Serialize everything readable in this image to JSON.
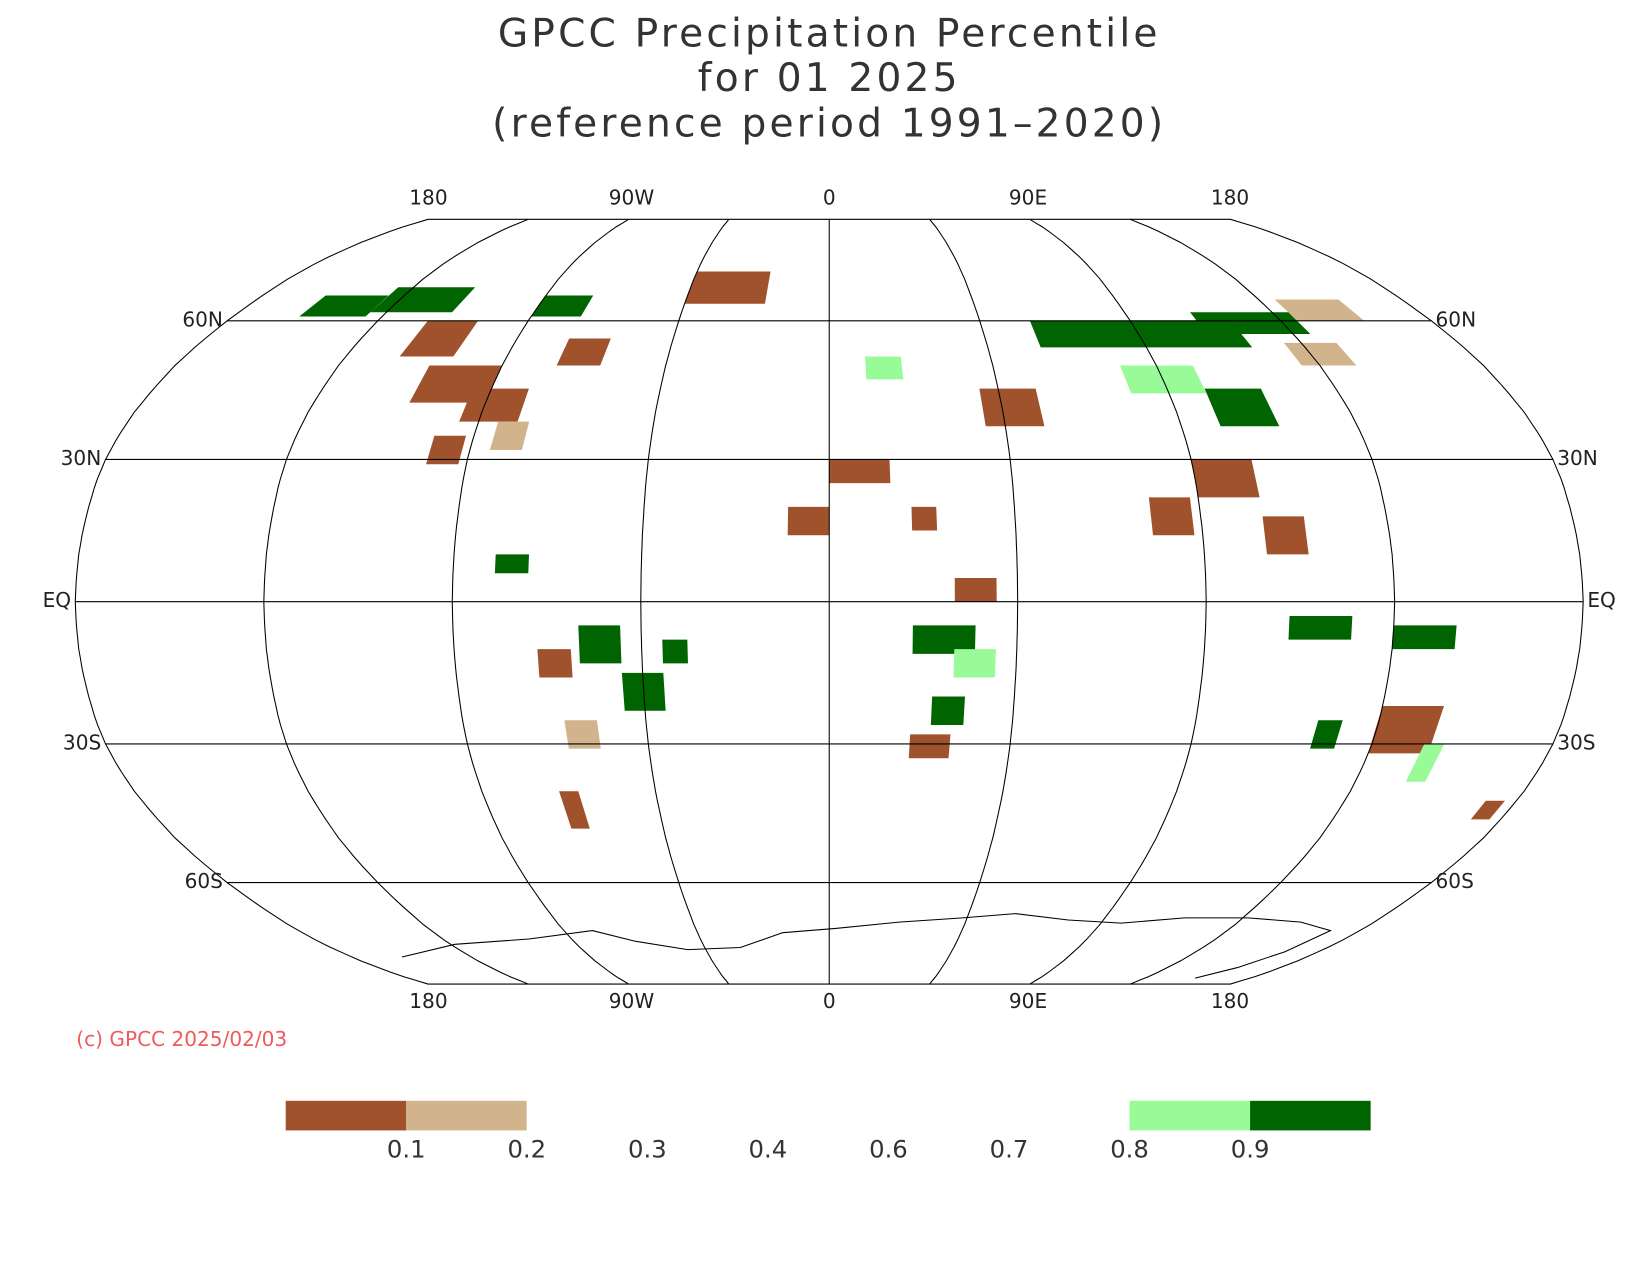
{
  "title": [
    "GPCC Precipitation Percentile",
    "for 01 2025",
    "(reference period 1991–2020)"
  ],
  "map": {
    "lon_labels": [
      "180",
      "90W",
      "0",
      "90E",
      "180"
    ],
    "lat_labels": [
      "60N",
      "30N",
      "EQ",
      "30S",
      "60S"
    ]
  },
  "credit": "(c) GPCC 2025/02/03",
  "legend": {
    "colors": [
      "#a0522d",
      "#d2b48c",
      "#ffffff",
      "#ffffff",
      "#ffffff",
      "#ffffff",
      "#ffffff",
      "#98fb98",
      "#006400"
    ],
    "labels": [
      "0.1",
      "0.2",
      "0.3",
      "0.4",
      "0.6",
      "0.7",
      "0.8",
      "0.9"
    ]
  }
}
